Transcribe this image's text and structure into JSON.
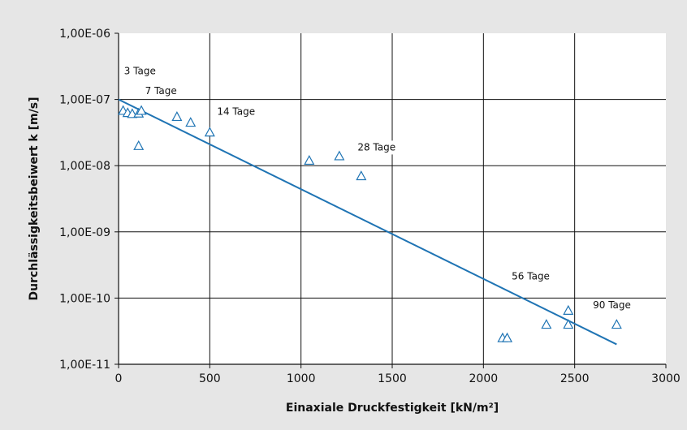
{
  "chart_data": {
    "type": "scatter",
    "title": "",
    "xlabel": "Einaxiale Druckfestigkeit [kN/m²]",
    "ylabel": "Durchlässigkeitsbeiwert k [m/s]",
    "xlim": [
      0,
      3000
    ],
    "ylim": [
      1e-11,
      1e-06
    ],
    "yscale": "log",
    "grid": true,
    "x_ticks": [
      {
        "value": 0,
        "label": "0"
      },
      {
        "value": 500,
        "label": "500"
      },
      {
        "value": 1000,
        "label": "1000"
      },
      {
        "value": 1500,
        "label": "1500"
      },
      {
        "value": 2000,
        "label": "2000"
      },
      {
        "value": 2500,
        "label": "2500"
      },
      {
        "value": 3000,
        "label": "3000"
      }
    ],
    "y_ticks": [
      {
        "value": 1e-06,
        "label": "1,00E-06"
      },
      {
        "value": 1e-07,
        "label": "1,00E-07"
      },
      {
        "value": 1e-08,
        "label": "1,00E-08"
      },
      {
        "value": 1e-09,
        "label": "1,00E-09"
      },
      {
        "value": 1e-10,
        "label": "1,00E-10"
      },
      {
        "value": 1e-11,
        "label": "1,00E-11"
      }
    ],
    "points": [
      {
        "x": 25,
        "y": 6.8e-08
      },
      {
        "x": 50,
        "y": 6.3e-08
      },
      {
        "x": 75,
        "y": 6.1e-08
      },
      {
        "x": 110,
        "y": 6.2e-08
      },
      {
        "x": 125,
        "y": 6.8e-08
      },
      {
        "x": 110,
        "y": 2e-08
      },
      {
        "x": 320,
        "y": 5.5e-08
      },
      {
        "x": 395,
        "y": 4.5e-08
      },
      {
        "x": 500,
        "y": 3.2e-08
      },
      {
        "x": 1045,
        "y": 1.2e-08
      },
      {
        "x": 1210,
        "y": 1.4e-08
      },
      {
        "x": 1330,
        "y": 7e-09
      },
      {
        "x": 2105,
        "y": 2.5e-11
      },
      {
        "x": 2130,
        "y": 2.5e-11
      },
      {
        "x": 2345,
        "y": 4e-11
      },
      {
        "x": 2465,
        "y": 6.5e-11
      },
      {
        "x": 2465,
        "y": 4e-11
      },
      {
        "x": 2730,
        "y": 4e-11
      }
    ],
    "trendline": {
      "x": [
        0,
        2730
      ],
      "y": [
        1e-07,
        2e-11
      ]
    },
    "annotations": [
      {
        "text": "3 Tage",
        "x": 30,
        "y": 2.4e-07
      },
      {
        "text": "7 Tage",
        "x": 145,
        "y": 1.2e-07
      },
      {
        "text": "14 Tage",
        "x": 540,
        "y": 5.9e-08
      },
      {
        "text": "28 Tage",
        "x": 1310,
        "y": 1.7e-08
      },
      {
        "text": "56 Tage",
        "x": 2155,
        "y": 1.9e-10
      },
      {
        "text": "90 Tage",
        "x": 2600,
        "y": 7e-11
      }
    ],
    "colors": {
      "trendline": "#1f74b4",
      "markers": "#1f74b4",
      "grid": "#111111",
      "plot_bg": "#ffffff",
      "figure_bg": "#e6e6e6"
    }
  }
}
